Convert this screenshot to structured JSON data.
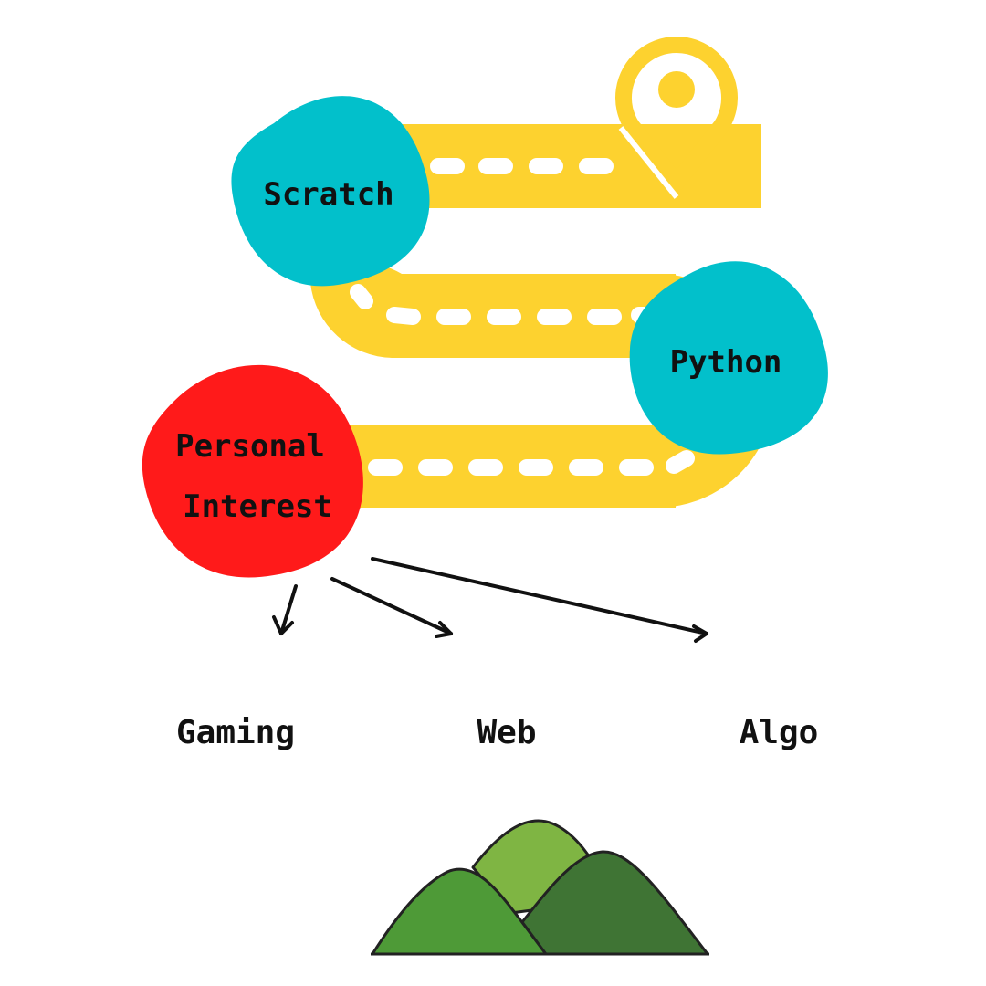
{
  "colors": {
    "road": "#FDD22F",
    "dash": "#FFFFFF",
    "pin": "#FDD22F",
    "node_primary": "#02C0CB",
    "node_accent": "#FF1A1A",
    "ink": "#111111",
    "hill_light": "#7FB543",
    "hill_mid": "#4E9A37",
    "hill_dark": "#3F7434"
  },
  "nodes": {
    "scratch": {
      "label": "Scratch"
    },
    "python": {
      "label": "Python"
    },
    "personal_interest": {
      "line1": "Personal",
      "line2": "Interest"
    }
  },
  "destinations": {
    "gaming": "Gaming",
    "web": "Web",
    "algo": "Algo"
  },
  "icons": [
    "map-pin-icon",
    "mountains-icon",
    "arrow-icon"
  ]
}
